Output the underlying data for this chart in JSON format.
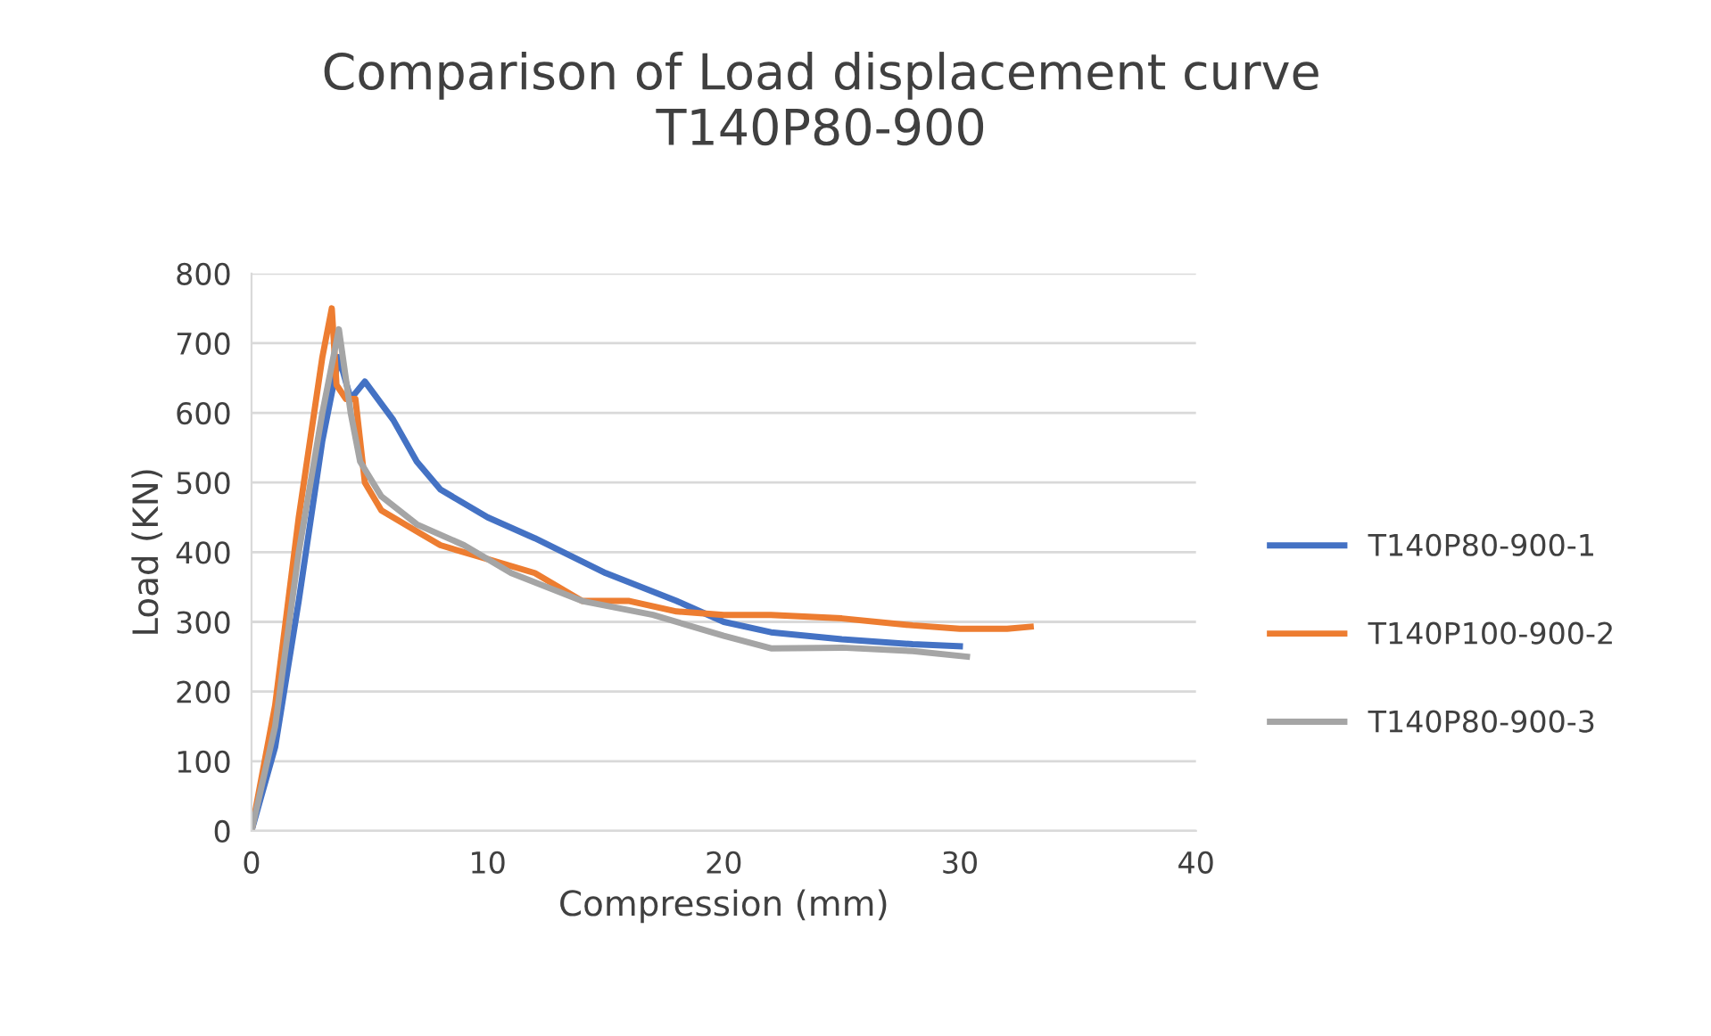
{
  "chart_data": {
    "type": "line",
    "title": "Comparison of Load displacement curve\nT140P80-900",
    "xlabel": "Compression (mm)",
    "ylabel": "Load (KN)",
    "xlim": [
      0,
      40
    ],
    "xticks": [
      0,
      10,
      20,
      30,
      40
    ],
    "ylim": [
      0,
      800
    ],
    "yticks": [
      0,
      100,
      200,
      300,
      400,
      500,
      600,
      700,
      800
    ],
    "grid": "y",
    "legend": "right",
    "marker": "none",
    "line_style": "solid",
    "series": [
      {
        "name": "T140P80-900-1",
        "color": "#4472c4",
        "x": [
          0,
          1,
          2,
          3,
          3.7,
          4.2,
          4.8,
          6,
          7,
          8,
          10,
          12,
          15,
          18,
          20,
          22,
          25,
          28,
          30
        ],
        "values": [
          0,
          120,
          330,
          560,
          680,
          620,
          645,
          590,
          530,
          490,
          450,
          420,
          370,
          330,
          300,
          285,
          275,
          268,
          265
        ]
      },
      {
        "name": "T140P100-900-2",
        "color": "#ed7d31",
        "x": [
          0,
          1,
          2,
          3,
          3.4,
          3.6,
          4,
          4.4,
          4.8,
          5.5,
          7,
          8,
          10,
          12,
          14,
          16,
          18,
          20,
          22,
          25,
          28,
          30,
          32,
          33
        ],
        "values": [
          0,
          180,
          450,
          680,
          750,
          640,
          620,
          620,
          500,
          460,
          430,
          410,
          390,
          370,
          330,
          330,
          315,
          310,
          310,
          305,
          295,
          290,
          290,
          293
        ]
      },
      {
        "name": "T140P80-900-3",
        "color": "#a5a5a5",
        "x": [
          0,
          1,
          2,
          3,
          3.7,
          4.2,
          4.6,
          5.5,
          7,
          9,
          11,
          14,
          17,
          20,
          22,
          25,
          28,
          30.3
        ],
        "values": [
          0,
          150,
          400,
          600,
          720,
          600,
          530,
          480,
          440,
          410,
          370,
          330,
          310,
          280,
          262,
          263,
          258,
          250
        ]
      }
    ]
  }
}
